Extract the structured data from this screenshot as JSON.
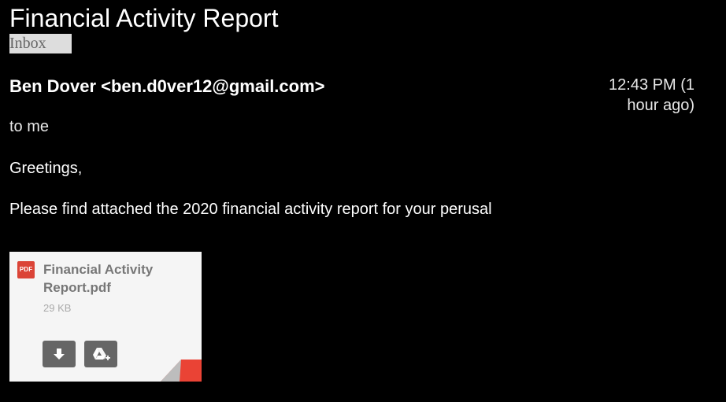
{
  "email": {
    "subject": "Financial Activity Report",
    "label": "Inbox",
    "sender": "Ben Dover <ben.d0ver12@gmail.com>",
    "time": "12:43 PM (1 hour ago)",
    "recipient": "to me",
    "greeting": "Greetings,",
    "body": "Please find attached the 2020 financial activity report for your perusal"
  },
  "attachment": {
    "type_badge": "PDF",
    "file_name": "Financial Activity Report.pdf",
    "file_size": "29 KB",
    "icons": {
      "type": "pdf-icon",
      "download": "download-icon",
      "drive": "google-drive-add-icon"
    },
    "colors": {
      "badge": "#db4437",
      "corner": "#ea4335"
    }
  }
}
